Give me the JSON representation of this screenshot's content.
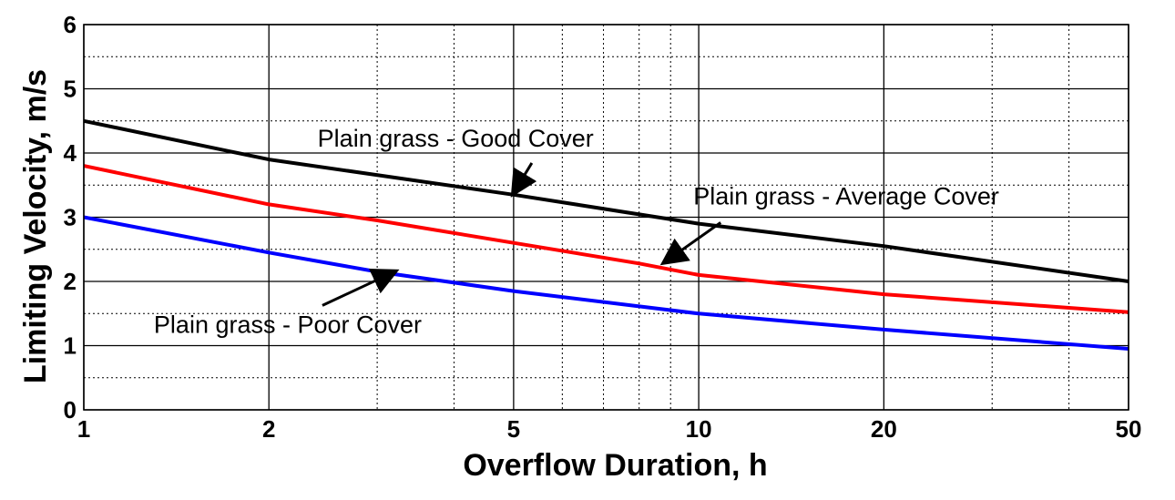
{
  "chart_data": {
    "type": "line",
    "xlabel": "Overflow Duration, h",
    "ylabel": "Limiting Velocity, m/s",
    "x_scale": "log",
    "xlim": [
      1,
      50
    ],
    "ylim": [
      0,
      6
    ],
    "x_ticks": [
      1,
      2,
      5,
      10,
      20,
      50
    ],
    "x_tick_labels": [
      "1",
      "2",
      "5",
      "10",
      "20",
      "50"
    ],
    "x_minor_ticks": [
      3,
      4,
      6,
      7,
      8,
      9,
      30,
      40
    ],
    "y_ticks": [
      0,
      1,
      2,
      3,
      4,
      5,
      6
    ],
    "y_tick_labels": [
      "0",
      "1",
      "2",
      "3",
      "4",
      "5",
      "6"
    ],
    "y_minor_ticks": [
      0.5,
      1.5,
      2.5,
      3.5,
      4.5,
      5.5
    ],
    "grid": true,
    "legend": "none",
    "series": [
      {
        "name": "Plain grass - Good Cover",
        "color": "#000000",
        "x": [
          1,
          2,
          5,
          10,
          20,
          50
        ],
        "y": [
          4.5,
          3.9,
          3.35,
          2.9,
          2.55,
          2.0
        ]
      },
      {
        "name": "Plain grass - Average Cover",
        "color": "#ff0000",
        "x": [
          1,
          2,
          3,
          5,
          8,
          10,
          20,
          50
        ],
        "y": [
          3.8,
          3.2,
          2.95,
          2.6,
          2.28,
          2.1,
          1.8,
          1.52
        ]
      },
      {
        "name": "Plain grass - Poor Cover",
        "color": "#0000ff",
        "x": [
          1,
          2,
          3,
          5,
          10,
          20,
          50
        ],
        "y": [
          3.0,
          2.45,
          2.15,
          1.85,
          1.5,
          1.25,
          0.95
        ]
      }
    ],
    "annotations": [
      {
        "text": "Plain grass - Good Cover",
        "series": 0,
        "text_pos": [
          2.4,
          4.1
        ],
        "arrow_to": [
          5.0,
          3.38
        ]
      },
      {
        "text": "Plain grass - Average Cover",
        "series": 1,
        "text_pos": [
          9.8,
          3.2
        ],
        "arrow_to": [
          8.8,
          2.3
        ]
      },
      {
        "text": "Plain grass - Poor Cover",
        "series": 2,
        "text_pos": [
          1.3,
          1.2
        ],
        "arrow_to": [
          3.2,
          2.15
        ]
      }
    ]
  }
}
